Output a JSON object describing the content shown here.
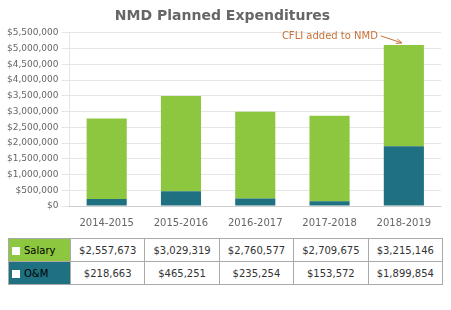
{
  "chart_data": {
    "type": "bar",
    "title": "NMD Planned Expenditures",
    "categories": [
      "2014-2015",
      "2015-2016",
      "2016-2017",
      "2017-2018",
      "2018-2019"
    ],
    "series": [
      {
        "name": "O&M",
        "color": "#1F7080",
        "values": [
          218663,
          465251,
          235254,
          153572,
          1899854
        ],
        "value_labels": [
          "$218,663",
          "$465,251",
          "$235,254",
          "$153,572",
          "$1,899,854"
        ]
      },
      {
        "name": "Salary",
        "color": "#8DC63F",
        "values": [
          2557673,
          3029319,
          2760577,
          2709675,
          3215146
        ],
        "value_labels": [
          "$2,557,673",
          "$3,029,319",
          "$2,760,577",
          "$2,709,675",
          "$3,215,146"
        ]
      }
    ],
    "stacked": true,
    "ylim": [
      0,
      5500000
    ],
    "yticks": [
      {
        "value": 0,
        "label": "$0"
      },
      {
        "value": 500000,
        "label": "$500,000"
      },
      {
        "value": 1000000,
        "label": "$1,000,000"
      },
      {
        "value": 1500000,
        "label": "$1,500,000"
      },
      {
        "value": 2000000,
        "label": "$2,000,000"
      },
      {
        "value": 2500000,
        "label": "$2,500,000"
      },
      {
        "value": 3000000,
        "label": "$3,000,000"
      },
      {
        "value": 3500000,
        "label": "$3,500,000"
      },
      {
        "value": 4000000,
        "label": "$4,000,000"
      },
      {
        "value": 4500000,
        "label": "$4,500,000"
      },
      {
        "value": 5000000,
        "label": "$5,000,000"
      },
      {
        "value": 5500000,
        "label": "$5,500,000"
      }
    ],
    "grid": true,
    "annotations": [
      {
        "text": "CFLI added to NMD",
        "color": "#C87137"
      }
    ]
  }
}
